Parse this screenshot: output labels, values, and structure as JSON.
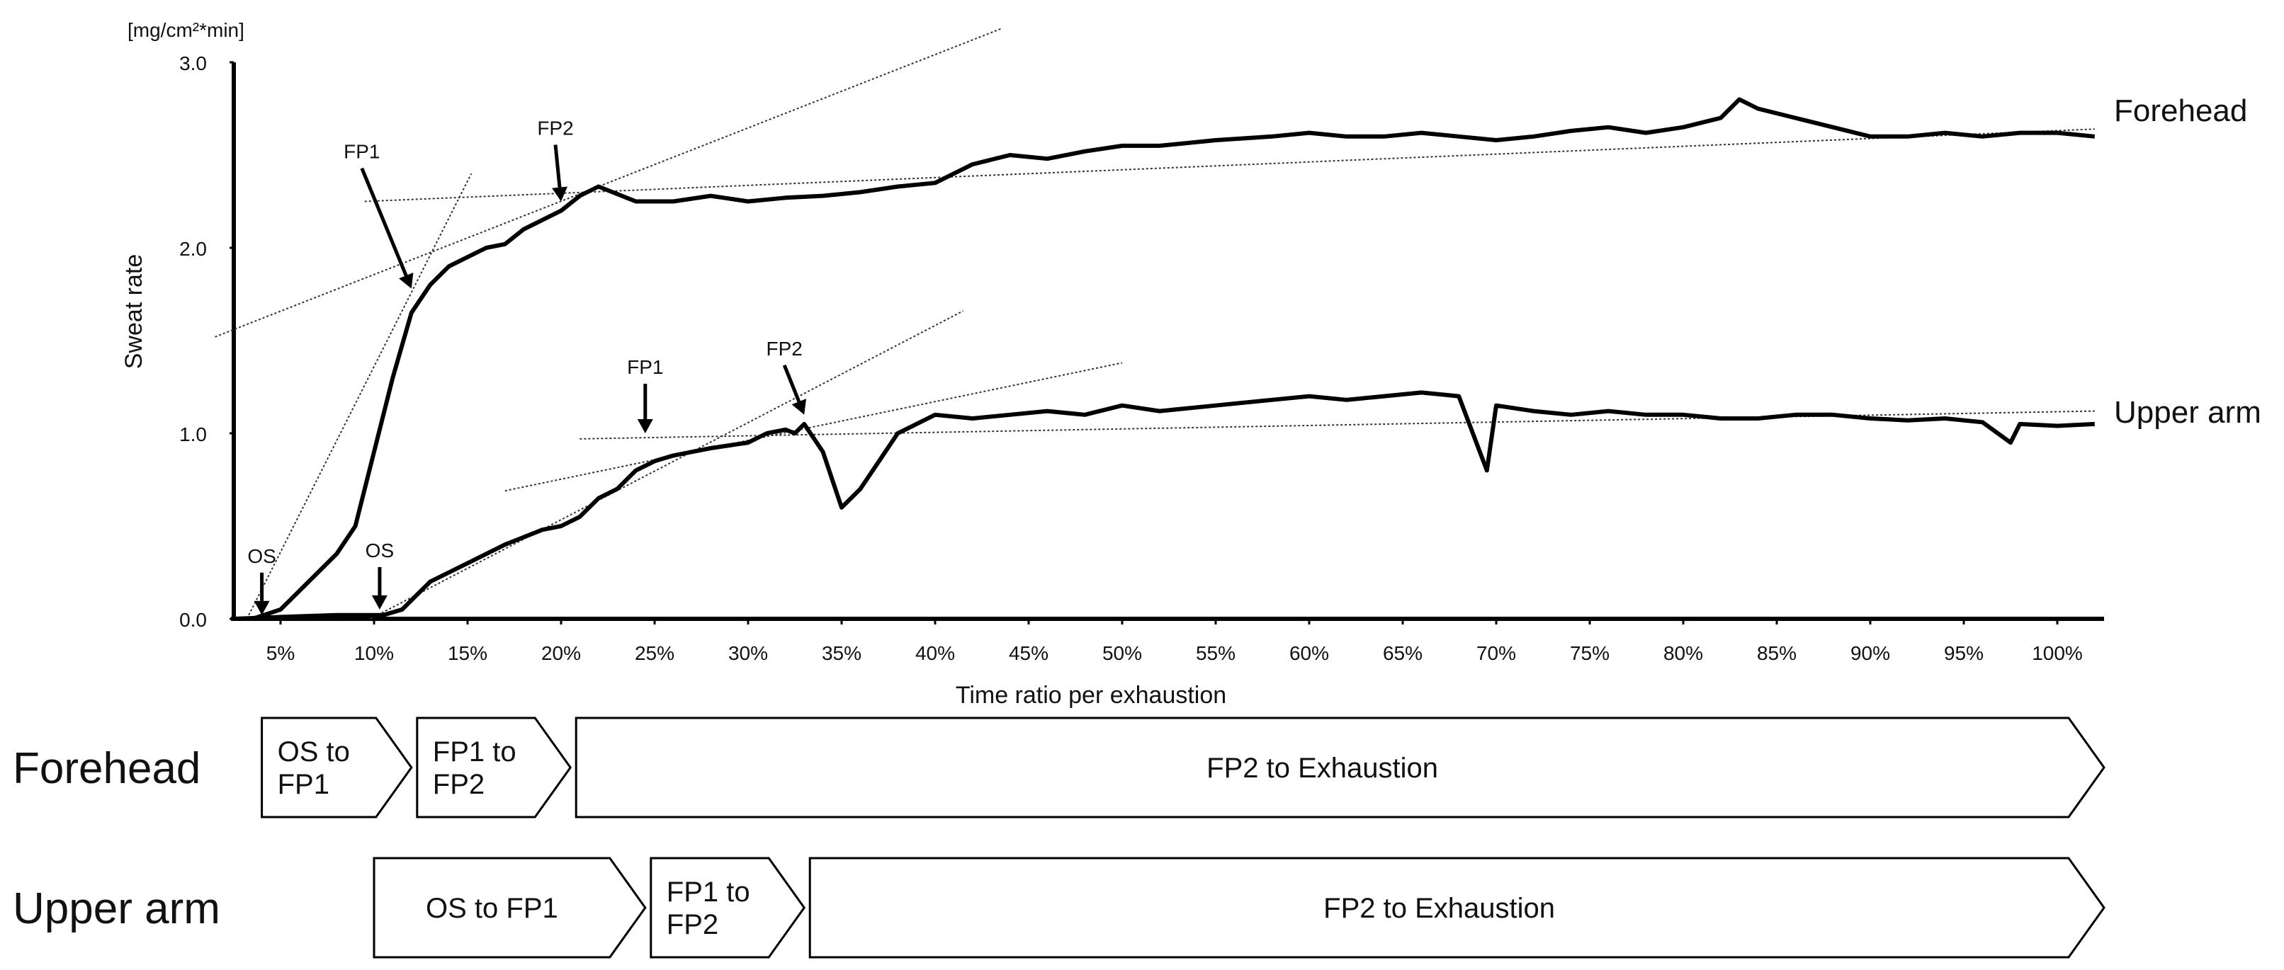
{
  "chart_data": {
    "type": "line",
    "ylabel": "Sweat rate",
    "yunit": "[mg/cm²*min]",
    "xlabel": "Time ratio per exhaustion",
    "ylim": [
      0,
      3
    ],
    "xlim": [
      2.5,
      102.5
    ],
    "yticks": [
      "0.0",
      "1.0",
      "2.0",
      "3.0"
    ],
    "xticks": [
      "5%",
      "10%",
      "15%",
      "20%",
      "25%",
      "30%",
      "35%",
      "40%",
      "45%",
      "50%",
      "55%",
      "60%",
      "65%",
      "70%",
      "75%",
      "80%",
      "85%",
      "90%",
      "95%",
      "100%"
    ],
    "grid": false,
    "series": [
      {
        "name": "Forehead",
        "x": [
          3.5,
          5,
          6,
          7,
          8,
          9,
          10,
          11,
          12,
          13,
          14,
          15,
          16,
          17,
          18,
          19,
          20,
          21,
          22,
          24,
          26,
          28,
          30,
          32,
          34,
          36,
          38,
          40,
          42,
          44,
          46,
          48,
          50,
          52,
          55,
          58,
          60,
          62,
          64,
          66,
          68,
          70,
          72,
          74,
          76,
          78,
          80,
          82,
          83,
          84,
          86,
          88,
          90,
          92,
          94,
          96,
          98,
          100,
          102
        ],
        "y": [
          0.0,
          0.05,
          0.15,
          0.25,
          0.35,
          0.5,
          0.9,
          1.3,
          1.65,
          1.8,
          1.9,
          1.95,
          2.0,
          2.02,
          2.1,
          2.15,
          2.2,
          2.28,
          2.33,
          2.25,
          2.25,
          2.28,
          2.25,
          2.27,
          2.28,
          2.3,
          2.33,
          2.35,
          2.45,
          2.5,
          2.48,
          2.52,
          2.55,
          2.55,
          2.58,
          2.6,
          2.62,
          2.6,
          2.6,
          2.62,
          2.6,
          2.58,
          2.6,
          2.63,
          2.65,
          2.62,
          2.65,
          2.7,
          2.8,
          2.75,
          2.7,
          2.65,
          2.6,
          2.6,
          2.62,
          2.6,
          2.62,
          2.62,
          2.6
        ],
        "label": "Forehead",
        "markers": [
          {
            "label": "OS",
            "x": 4.0,
            "y": 0.02
          },
          {
            "label": "FP1",
            "x": 12.0,
            "y": 1.78
          },
          {
            "label": "FP2",
            "x": 20.0,
            "y": 2.25
          }
        ],
        "trend_lines": [
          {
            "x": [
              3.2,
              15.2
            ],
            "y": [
              0.0,
              2.4
            ]
          },
          {
            "x": [
              1.5,
              43.5
            ],
            "y": [
              1.52,
              3.18
            ]
          },
          {
            "x": [
              9.5,
              102
            ],
            "y": [
              2.25,
              2.64
            ]
          }
        ]
      },
      {
        "name": "Upper arm",
        "x": [
          2.5,
          5,
          8,
          10.5,
          11.5,
          12,
          13,
          15,
          17,
          19,
          20,
          21,
          22,
          23,
          24,
          25,
          26,
          27,
          28,
          30,
          31,
          32,
          32.5,
          33,
          34,
          35,
          36,
          37,
          38,
          39,
          40,
          42,
          44,
          46,
          48,
          50,
          52,
          55,
          58,
          60,
          62,
          64,
          66,
          68,
          69.5,
          70,
          72,
          74,
          76,
          78,
          80,
          82,
          84,
          86,
          88,
          90,
          92,
          94,
          96,
          97.5,
          98,
          100,
          102
        ],
        "y": [
          0.0,
          0.01,
          0.02,
          0.02,
          0.05,
          0.1,
          0.2,
          0.3,
          0.4,
          0.48,
          0.5,
          0.55,
          0.65,
          0.7,
          0.8,
          0.85,
          0.88,
          0.9,
          0.92,
          0.95,
          1.0,
          1.02,
          1.0,
          1.05,
          0.9,
          0.6,
          0.7,
          0.85,
          1.0,
          1.05,
          1.1,
          1.08,
          1.1,
          1.12,
          1.1,
          1.15,
          1.12,
          1.15,
          1.18,
          1.2,
          1.18,
          1.2,
          1.22,
          1.2,
          0.8,
          1.15,
          1.12,
          1.1,
          1.12,
          1.1,
          1.1,
          1.08,
          1.08,
          1.1,
          1.1,
          1.08,
          1.07,
          1.08,
          1.06,
          0.95,
          1.05,
          1.04,
          1.05
        ],
        "label": "Upper arm",
        "markers": [
          {
            "label": "OS",
            "x": 10.3,
            "y": 0.05
          },
          {
            "label": "FP1",
            "x": 24.5,
            "y": 1.0
          },
          {
            "label": "FP2",
            "x": 33.0,
            "y": 1.1
          }
        ],
        "trend_lines": [
          {
            "x": [
              9.8,
              41.5
            ],
            "y": [
              0.0,
              1.66
            ]
          },
          {
            "x": [
              17,
              50
            ],
            "y": [
              0.69,
              1.38
            ]
          },
          {
            "x": [
              21,
              102
            ],
            "y": [
              0.97,
              1.12
            ]
          }
        ]
      }
    ],
    "phases": [
      {
        "row_label": "Forehead",
        "segments": [
          {
            "lines": [
              "OS to",
              "FP1"
            ],
            "start": 4.0,
            "end": 12.0
          },
          {
            "lines": [
              "FP1 to",
              "FP2"
            ],
            "start": 12.0,
            "end": 20.5
          },
          {
            "lines": [
              "FP2 to Exhaustion"
            ],
            "start": 20.5,
            "end": 102.5
          }
        ]
      },
      {
        "row_label": "Upper arm",
        "segments": [
          {
            "lines": [
              "OS to  FP1"
            ],
            "start": 10.0,
            "end": 24.5
          },
          {
            "lines": [
              "FP1 to",
              "FP2"
            ],
            "start": 24.5,
            "end": 33.0
          },
          {
            "lines": [
              "FP2 to Exhaustion"
            ],
            "start": 33.0,
            "end": 102.5
          }
        ]
      }
    ]
  }
}
